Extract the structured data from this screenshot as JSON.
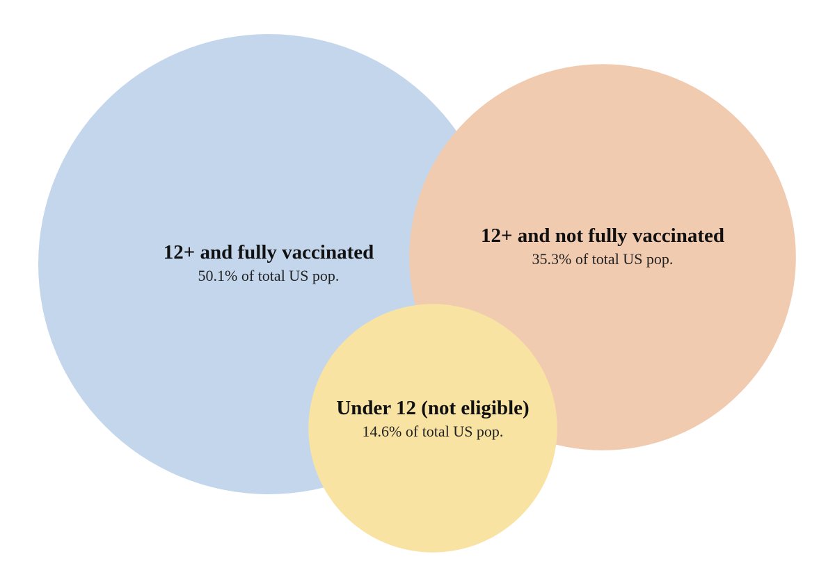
{
  "chart_data": {
    "type": "bubble",
    "title": "",
    "unit": "% of total US pop.",
    "series": [
      {
        "name": "12+ and fully vaccinated",
        "value": 50.1,
        "value_label": "50.1% of total US pop.",
        "color": "#c3d6ec"
      },
      {
        "name": "12+ and not fully vaccinated",
        "value": 35.3,
        "value_label": "35.3% of total US pop.",
        "color": "#f1cbb0"
      },
      {
        "name": "Under 12 (not eligible)",
        "value": 14.6,
        "value_label": "14.6% of total US pop.",
        "color": "#f8e3a3"
      }
    ]
  }
}
